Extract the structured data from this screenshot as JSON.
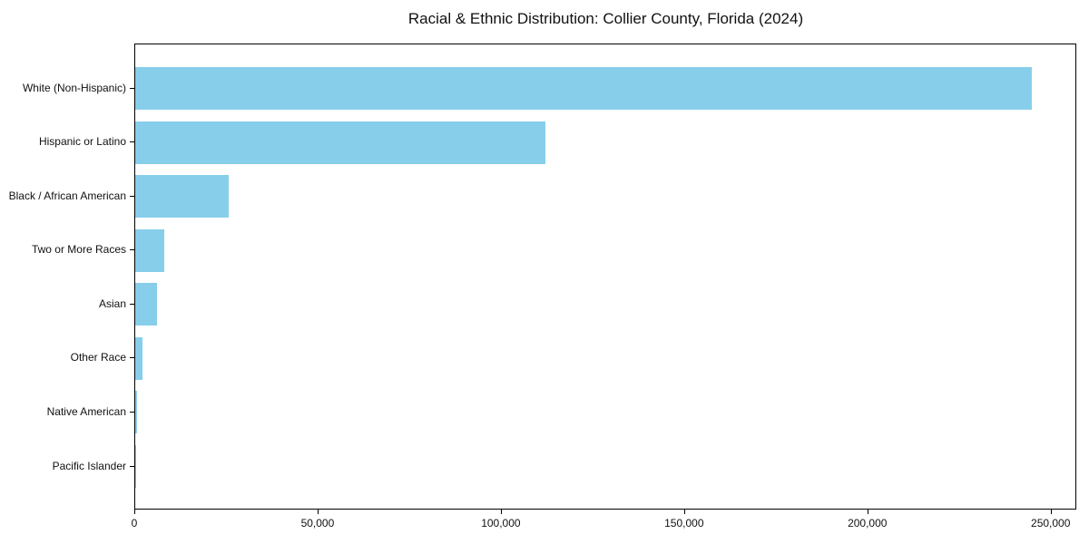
{
  "chart_data": {
    "type": "bar",
    "orientation": "horizontal",
    "title": "Racial & Ethnic Distribution: Collier County, Florida (2024)",
    "categories": [
      "White (Non-Hispanic)",
      "Hispanic or Latino",
      "Black / African American",
      "Two or More Races",
      "Asian",
      "Other Race",
      "Native American",
      "Pacific Islander"
    ],
    "values": [
      244500,
      112000,
      25500,
      7800,
      6000,
      2000,
      400,
      100
    ],
    "xlabel": "",
    "ylabel": "",
    "xlim": [
      0,
      257000
    ],
    "x_ticks": [
      0,
      50000,
      100000,
      150000,
      200000,
      250000
    ],
    "x_tick_labels": [
      "0",
      "50,000",
      "100,000",
      "150,000",
      "200,000",
      "250,000"
    ],
    "bar_color": "#87CEEB",
    "axis_color": "#000000",
    "grid": false,
    "legend": null
  }
}
